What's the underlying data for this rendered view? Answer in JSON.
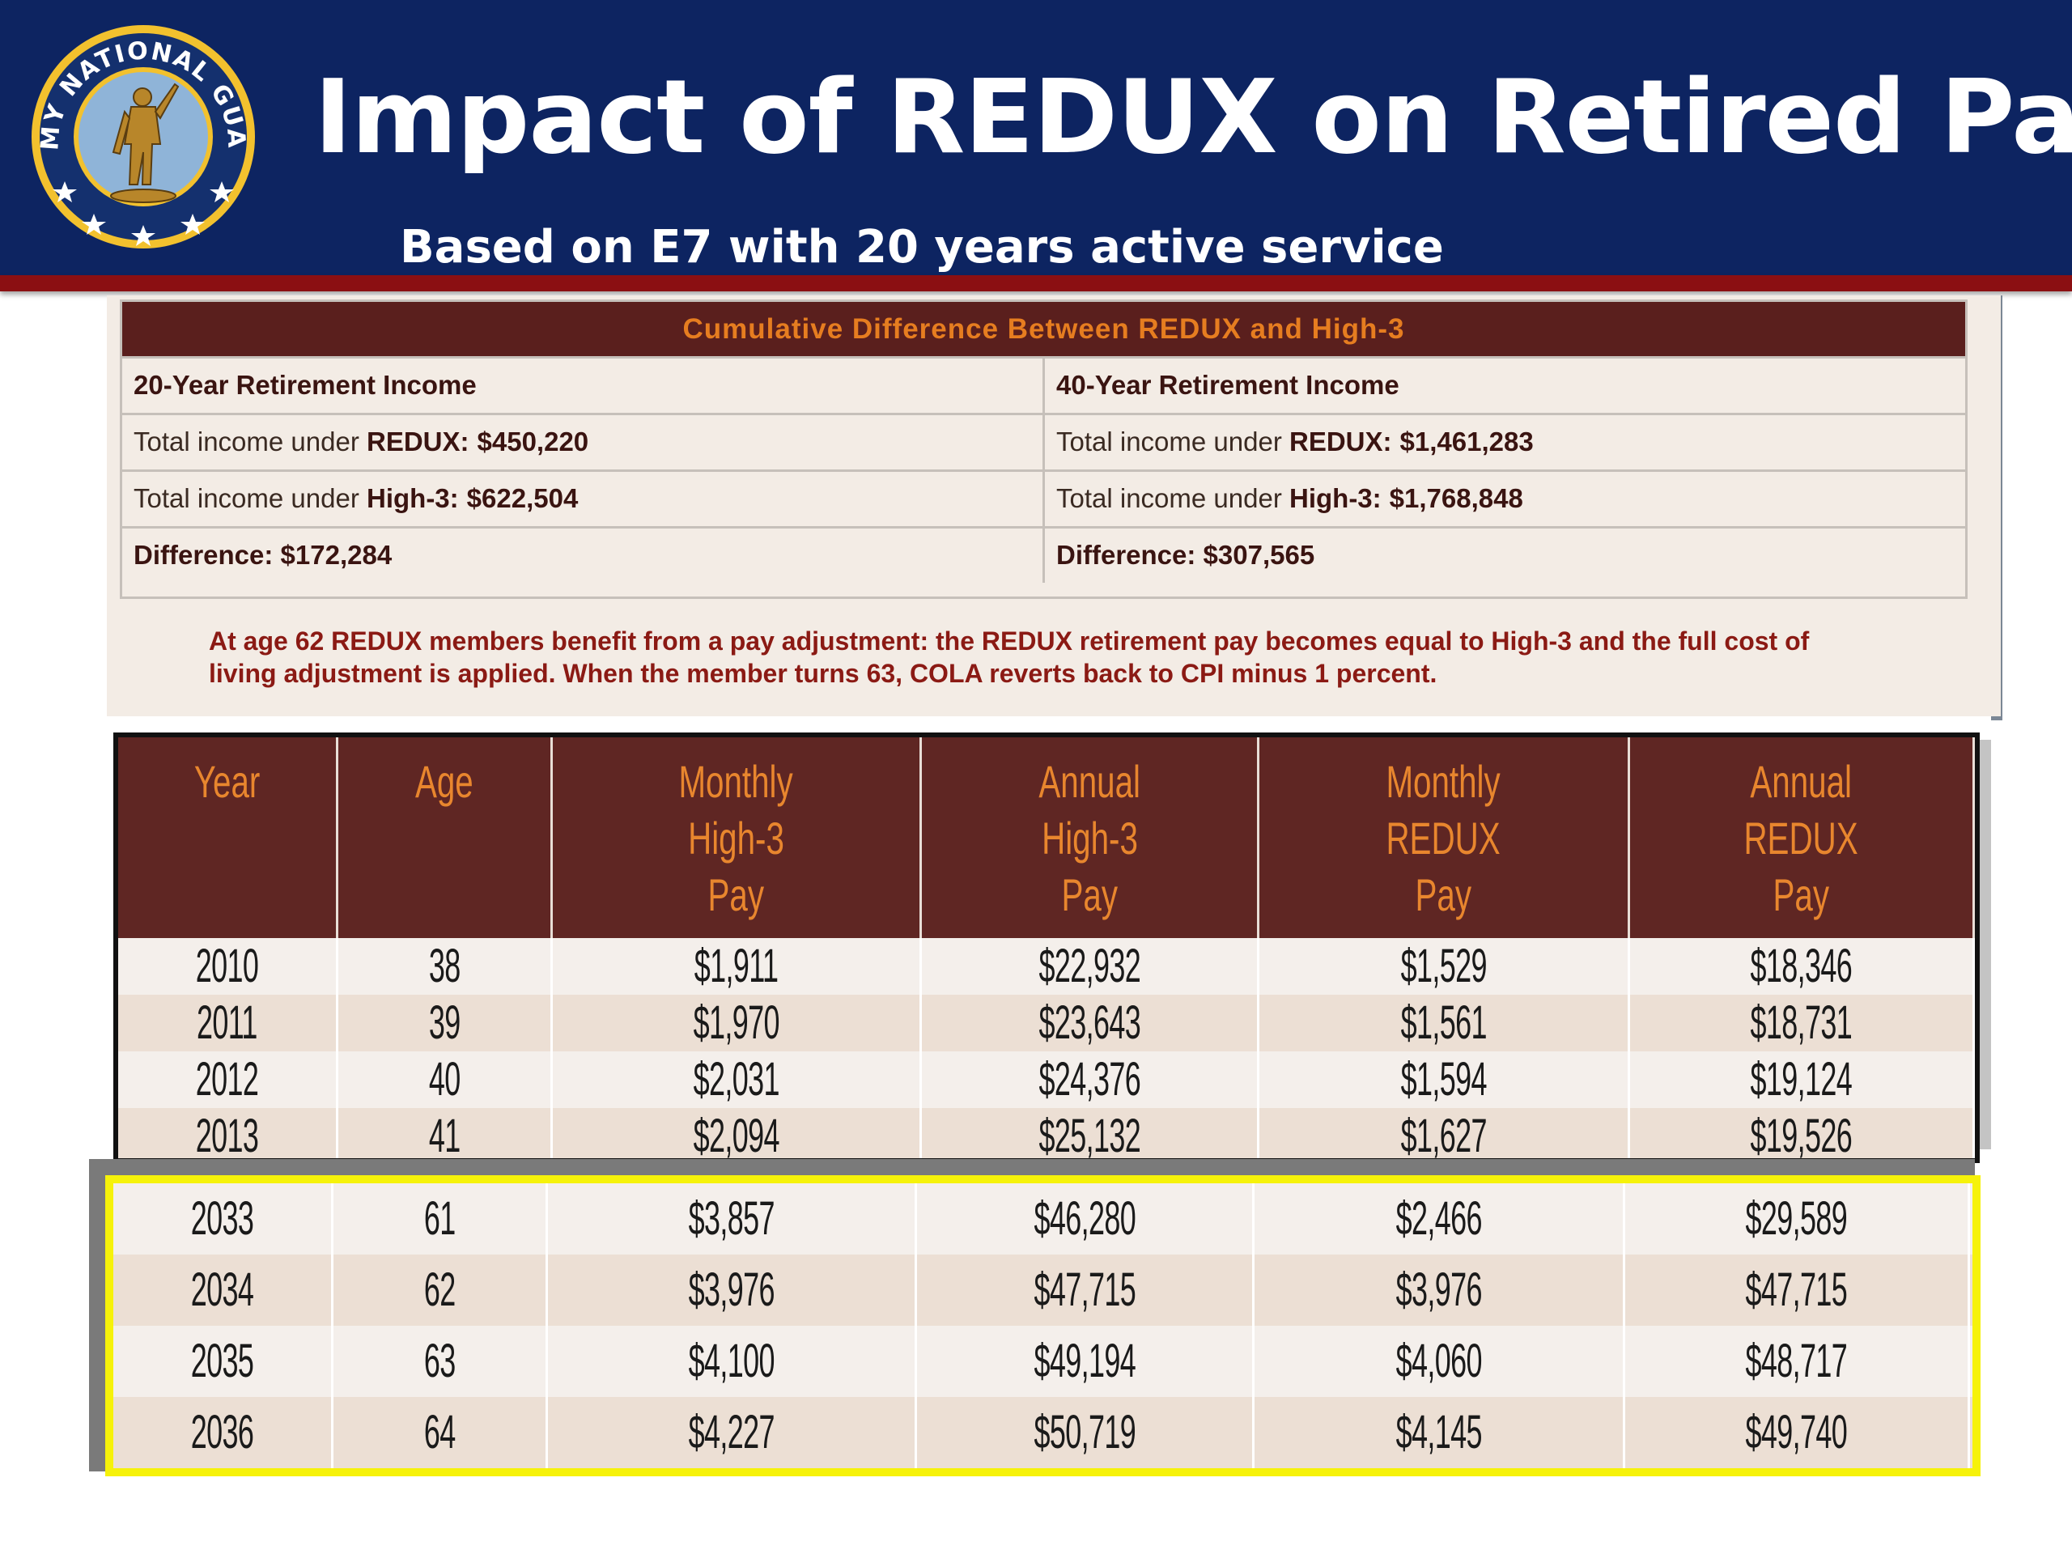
{
  "header": {
    "title": "Impact of REDUX on Retired Pay",
    "subtitle": "Based on E7 with 20 years active service",
    "logo_text": "ARMY NATIONAL GUARD",
    "colors": {
      "header_bg": "#0d2461",
      "rule": "#8b0f12",
      "text": "#ffffff"
    }
  },
  "summary": {
    "heading": "Cumulative Difference Between REDUX and High-3",
    "left": {
      "title": "20-Year Retirement Income",
      "redux_prefix": "Total income under",
      "redux_label": "REDUX:",
      "redux_value": "$450,220",
      "high3_prefix": "Total income under",
      "high3_label": "High-3:",
      "high3_value": "$622,504",
      "difference": "Difference: $172,284"
    },
    "right": {
      "title": "40-Year Retirement Income",
      "redux_prefix": "Total income under",
      "redux_label": "REDUX:",
      "redux_value": "$1,461,283",
      "high3_prefix": "Total income under",
      "high3_label": "High-3:",
      "high3_value": "$1,768,848",
      "difference": "Difference: $307,565"
    },
    "note": "At age 62 REDUX members benefit from a pay adjustment: the REDUX retirement pay becomes equal to High-3 and the full cost of living adjustment is applied. When the member turns 63, COLA reverts back to CPI minus 1 percent.",
    "colors": {
      "heading_bg": "#5a1f1d",
      "heading_text": "#e67d20",
      "note_text": "#8b1a14"
    }
  },
  "pay_table": {
    "columns": [
      [
        "Year"
      ],
      [
        "Age"
      ],
      [
        "Monthly",
        "High-3",
        "Pay"
      ],
      [
        "Annual",
        "High-3",
        "Pay"
      ],
      [
        "Monthly",
        "REDUX",
        "Pay"
      ],
      [
        "Annual",
        "REDUX",
        "Pay"
      ]
    ],
    "rows_top": [
      [
        "2010",
        "38",
        "$1,911",
        "$22,932",
        "$1,529",
        "$18,346"
      ],
      [
        "2011",
        "39",
        "$1,970",
        "$23,643",
        "$1,561",
        "$18,731"
      ],
      [
        "2012",
        "40",
        "$2,031",
        "$24,376",
        "$1,594",
        "$19,124"
      ],
      [
        "2013",
        "41",
        "$2,094",
        "$25,132",
        "$1,627",
        "$19,526"
      ]
    ],
    "rows_highlighted": [
      [
        "2033",
        "61",
        "$3,857",
        "$46,280",
        "$2,466",
        "$29,589"
      ],
      [
        "2034",
        "62",
        "$3,976",
        "$47,715",
        "$3,976",
        "$47,715"
      ],
      [
        "2035",
        "63",
        "$4,100",
        "$49,194",
        "$4,060",
        "$48,717"
      ],
      [
        "2036",
        "64",
        "$4,227",
        "$50,719",
        "$4,145",
        "$49,740"
      ]
    ],
    "colors": {
      "header_bg": "#5f2623",
      "header_text": "#e8862e",
      "highlight_border": "#f6f20a",
      "row_light": "#f4efeb",
      "row_dark": "#ecdfd4"
    }
  }
}
